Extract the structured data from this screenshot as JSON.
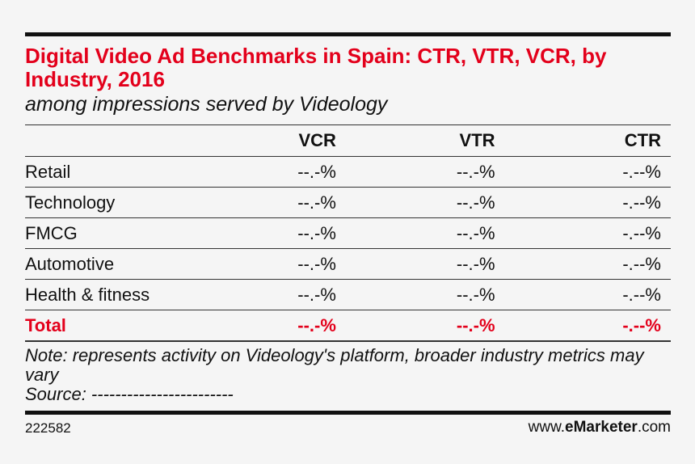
{
  "chart_data": {
    "type": "table",
    "title": "Digital Video Ad Benchmarks in Spain: CTR, VTR, VCR, by Industry, 2016",
    "subtitle": "among impressions served by Videology",
    "columns": [
      "",
      "VCR",
      "VTR",
      "CTR"
    ],
    "rows": [
      {
        "label": "Retail",
        "vcr": "--.-%",
        "vtr": "--.-%",
        "ctr": "-.--%"
      },
      {
        "label": "Technology",
        "vcr": "--.-%",
        "vtr": "--.-%",
        "ctr": "-.--%"
      },
      {
        "label": "FMCG",
        "vcr": "--.-%",
        "vtr": "--.-%",
        "ctr": "-.--%"
      },
      {
        "label": "Automotive",
        "vcr": "--.-%",
        "vtr": "--.-%",
        "ctr": "-.--%"
      },
      {
        "label": "Health & fitness",
        "vcr": "--.-%",
        "vtr": "--.-%",
        "ctr": "-.--%"
      }
    ],
    "total": {
      "label": "Total",
      "vcr": "--.-%",
      "vtr": "--.-%",
      "ctr": "-.--%"
    },
    "note": "Note: represents activity on Videology's platform, broader industry metrics may vary",
    "source": "Source: ------------------------",
    "chart_id": "222582",
    "brand_prefix": "www.",
    "brand_name": "eMarketer",
    "brand_suffix": ".com"
  },
  "colors": {
    "accent": "#e3001b",
    "text": "#111111",
    "background": "#f5f5f5"
  }
}
